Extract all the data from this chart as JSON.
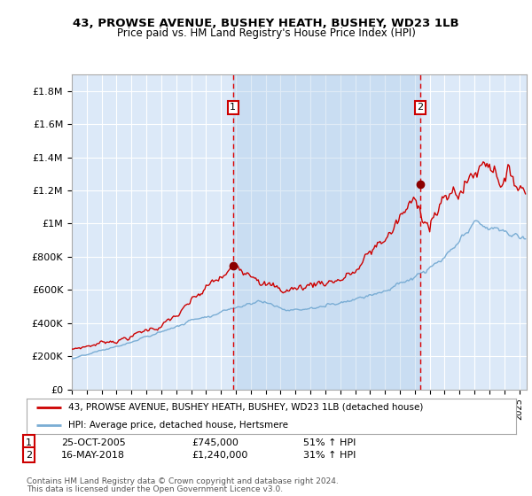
{
  "title": "43, PROWSE AVENUE, BUSHEY HEATH, BUSHEY, WD23 1LB",
  "subtitle": "Price paid vs. HM Land Registry's House Price Index (HPI)",
  "ylabel_ticks": [
    "£0",
    "£200K",
    "£400K",
    "£600K",
    "£800K",
    "£1M",
    "£1.2M",
    "£1.4M",
    "£1.6M",
    "£1.8M"
  ],
  "ytick_values": [
    0,
    200000,
    400000,
    600000,
    800000,
    1000000,
    1200000,
    1400000,
    1600000,
    1800000
  ],
  "ylim": [
    0,
    1900000
  ],
  "xlim_start": 1995.0,
  "xlim_end": 2025.5,
  "sale1_x": 2005.81,
  "sale1_y": 745000,
  "sale2_x": 2018.37,
  "sale2_y": 1240000,
  "sale1_date": "25-OCT-2005",
  "sale1_price": "£745,000",
  "sale1_hpi": "51% ↑ HPI",
  "sale2_date": "16-MAY-2018",
  "sale2_price": "£1,240,000",
  "sale2_hpi": "31% ↑ HPI",
  "background_color": "#dce9f8",
  "shade_color": "#c8daf0",
  "grid_color": "#ffffff",
  "red_line_color": "#cc0000",
  "blue_line_color": "#7aadd4",
  "marker_box_color": "#cc0000",
  "vline_color": "#dd0000",
  "dot_color": "#8b0000",
  "legend_label_red": "43, PROWSE AVENUE, BUSHEY HEATH, BUSHEY, WD23 1LB (detached house)",
  "legend_label_blue": "HPI: Average price, detached house, Hertsmere",
  "footer1": "Contains HM Land Registry data © Crown copyright and database right 2024.",
  "footer2": "This data is licensed under the Open Government Licence v3.0."
}
